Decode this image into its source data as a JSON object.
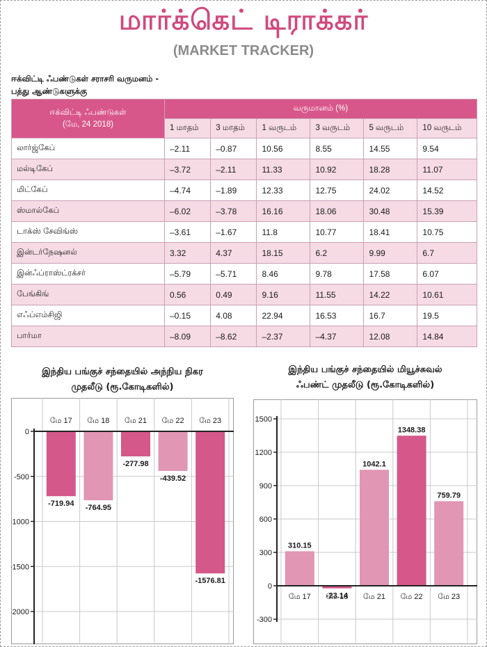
{
  "header": {
    "title": "மார்க்கெட் டிராக்கர்",
    "subtitle": "(MARKET TRACKER)"
  },
  "table": {
    "caption_line1": "ஈக்விட்டி ஃபண்டுகள் சராசரி வருமனம் -",
    "caption_line2": "பத்து ஆண்டுகளுக்கு",
    "fund_header_line1": "ஈக்விட்டி ஃபண்டுகள்",
    "fund_header_line2": "(மே, 24 2018)",
    "returns_header": "வருமானம் (%)",
    "periods": [
      "1 மாதம்",
      "3 மாதம்",
      "1 வருடம்",
      "3 வருடம்",
      "5 வருடம்",
      "10 வருடம்"
    ],
    "rows": [
      {
        "fund": "லார்ஜ்கேப்",
        "values": [
          "–2.11",
          "–0.87",
          "10.56",
          "8.55",
          "14.55",
          "9.54"
        ]
      },
      {
        "fund": "மல்டிகேப்",
        "values": [
          "–3.72",
          "–2.11",
          "11.33",
          "10.92",
          "18.28",
          "11.07"
        ]
      },
      {
        "fund": "மிட்கேப்",
        "values": [
          "–4.74",
          "–1.89",
          "12.33",
          "12.75",
          "24.02",
          "14.52"
        ]
      },
      {
        "fund": "ஸ்மால்கேப்",
        "values": [
          "–6.02",
          "–3.78",
          "16.16",
          "18.06",
          "30.48",
          "15.39"
        ]
      },
      {
        "fund": "டாக்ஸ் சேவிங்ஸ்",
        "values": [
          "–3.61",
          "–1.67",
          "11.8",
          "10.77",
          "18.41",
          "10.75"
        ]
      },
      {
        "fund": "இன்டர்நேஷனல்",
        "values": [
          "3.32",
          "4.37",
          "18.15",
          "6.2",
          "9.99",
          "6.7"
        ]
      },
      {
        "fund": "இன்ஃப்ராஸ்ட்ரக்சர்",
        "values": [
          "–5.79",
          "–5.71",
          "8.46",
          "9.78",
          "17.58",
          "6.07"
        ]
      },
      {
        "fund": "பேங்கிங்",
        "values": [
          "0.56",
          "0.49",
          "9.16",
          "11.55",
          "14.22",
          "10.61"
        ]
      },
      {
        "fund": "எஃப்எம்சிஜி",
        "values": [
          "–0.15",
          "4.08",
          "22.94",
          "16.53",
          "16.7",
          "19.5"
        ]
      },
      {
        "fund": "பார்மா",
        "values": [
          "–8.09",
          "–8.62",
          "–2.37",
          "–4.37",
          "12.08",
          "14.84"
        ]
      }
    ]
  },
  "chart_data": [
    {
      "type": "bar",
      "title_line1": "இந்திய பங்குச் சந்தையில் அந்நிய நிகர",
      "title_line2": "முதலீடு (ரூ.கோடிகளில்)",
      "categories": [
        "மே 17",
        "மே 18",
        "மே 21",
        "மே 22",
        "மே 23"
      ],
      "values": [
        -719.94,
        -764.95,
        -277.98,
        -439.52,
        -1576.81
      ],
      "value_labels": [
        "-719.94",
        "-764.95",
        "-277.98",
        "-439.52",
        "-1576.81"
      ],
      "yticks": [
        0,
        -500,
        -1000,
        -1500,
        -2000
      ],
      "ylim": [
        -2000,
        0
      ],
      "grid": true,
      "colors": [
        "#d4588a",
        "#e196b3",
        "#d4588a",
        "#e196b3",
        "#d4588a"
      ]
    },
    {
      "type": "bar",
      "title_line1": "இந்திய பங்குச் சந்தையில் மியூச்சுவல்",
      "title_line2": "ஃபண்ட் முதலீடு (ரூ.கோடிகளில்)",
      "categories": [
        "மே 17",
        "மே 18",
        "மே 21",
        "மே 22",
        "மே 23"
      ],
      "values": [
        310.15,
        -23.14,
        1042.1,
        1348.38,
        759.79
      ],
      "value_labels": [
        "310.15",
        "-23.14",
        "1042.1",
        "1348.38",
        "759.79"
      ],
      "yticks": [
        1500,
        1200,
        900,
        600,
        300,
        0,
        -300
      ],
      "ylim": [
        -300,
        1500
      ],
      "grid": true,
      "colors": [
        "#e196b3",
        "#d4588a",
        "#e196b3",
        "#d4588a",
        "#e196b3"
      ]
    }
  ]
}
